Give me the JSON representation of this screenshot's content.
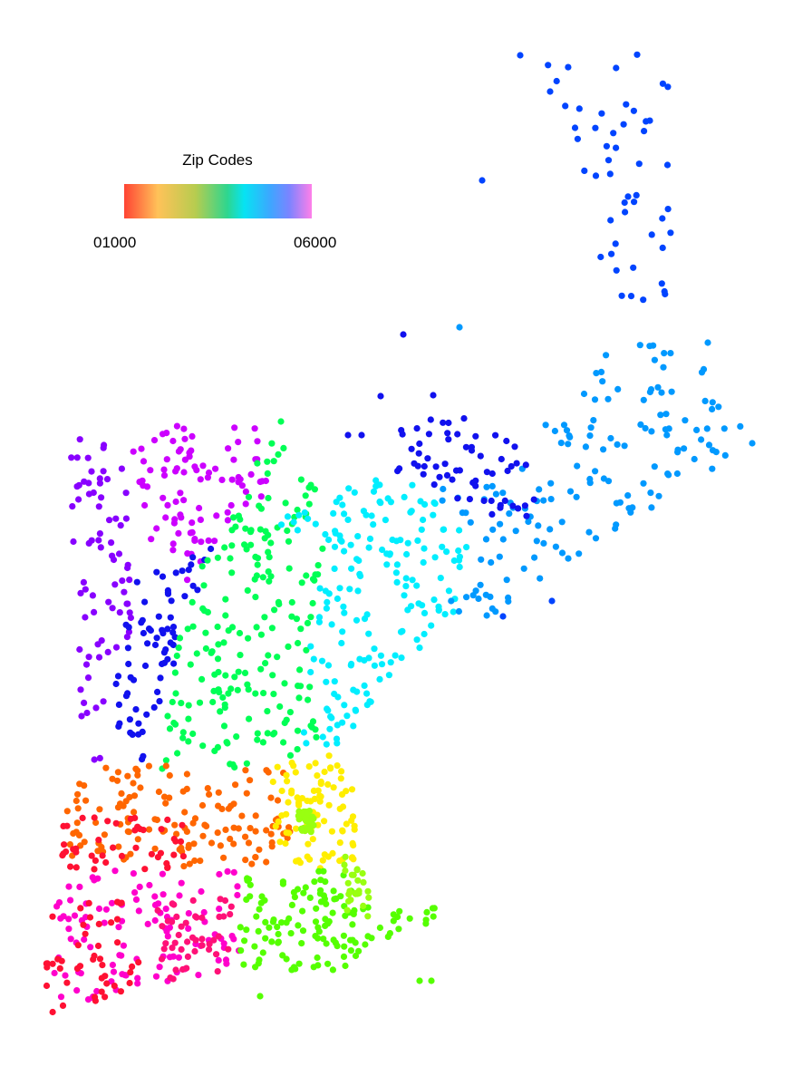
{
  "legend": {
    "title": "Zip Codes",
    "min_label": "01000",
    "max_label": "06000",
    "gradient_colors": [
      "#ff4433",
      "#ffc259",
      "#b7cc4f",
      "#2ed68f",
      "#06e3f3",
      "#3ea6ff",
      "#7b84ff",
      "#ff7fe9"
    ]
  },
  "map": {
    "point_colors": {
      "red": "#ff1133",
      "orange": "#ff6600",
      "yellow": "#ffee00",
      "yellowgreen": "#99ff11",
      "green": "#55ff00",
      "greenbright": "#00ff55",
      "cyan": "#00eeff",
      "sky": "#0099ff",
      "blue": "#0044ff",
      "navy": "#1111ee",
      "purple": "#8800ff",
      "violet": "#cc00ff",
      "magenta": "#ff00cc",
      "pink": "#ff1177"
    }
  }
}
